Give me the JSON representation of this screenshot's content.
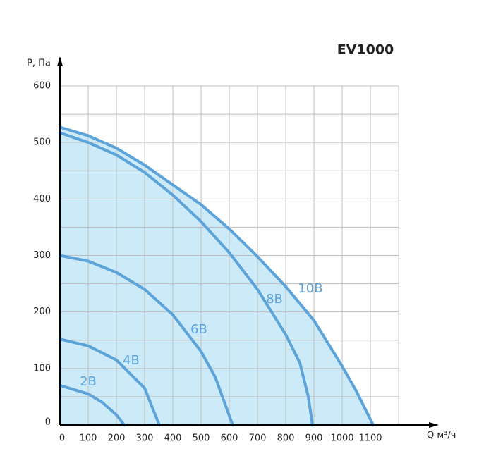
{
  "chart_data": {
    "type": "line",
    "title": "EV1000",
    "x_label": "Q м³/ч",
    "y_label": "P, Па",
    "xlim": [
      0,
      1200
    ],
    "ylim": [
      0,
      600
    ],
    "xticks": [
      0,
      100,
      200,
      300,
      400,
      500,
      600,
      700,
      800,
      900,
      1000,
      1100
    ],
    "yticks": [
      0,
      100,
      200,
      300,
      400,
      500,
      600
    ],
    "grid": true,
    "fill_color": "#cdeaf8",
    "series": [
      {
        "name": "10В",
        "color": "#5ba3d9",
        "x": [
          0,
          100,
          200,
          300,
          400,
          500,
          600,
          700,
          800,
          900,
          1000,
          1050,
          1110
        ],
        "values": [
          527,
          512,
          490,
          460,
          425,
          390,
          347,
          298,
          245,
          185,
          104,
          60,
          0
        ]
      },
      {
        "name": "8В",
        "color": "#5ba3d9",
        "x": [
          0,
          100,
          200,
          300,
          400,
          500,
          600,
          700,
          800,
          850,
          880,
          895
        ],
        "values": [
          517,
          500,
          478,
          447,
          407,
          360,
          305,
          240,
          160,
          110,
          50,
          0
        ]
      },
      {
        "name": "6В",
        "color": "#5ba3d9",
        "x": [
          0,
          100,
          200,
          300,
          400,
          500,
          550,
          612
        ],
        "values": [
          300,
          290,
          270,
          240,
          195,
          130,
          85,
          0
        ]
      },
      {
        "name": "4В",
        "color": "#5ba3d9",
        "x": [
          0,
          100,
          200,
          300,
          352
        ],
        "values": [
          152,
          140,
          115,
          65,
          0
        ]
      },
      {
        "name": "2В",
        "color": "#5ba3d9",
        "x": [
          0,
          100,
          150,
          200,
          228
        ],
        "values": [
          70,
          55,
          40,
          18,
          0
        ]
      }
    ]
  }
}
